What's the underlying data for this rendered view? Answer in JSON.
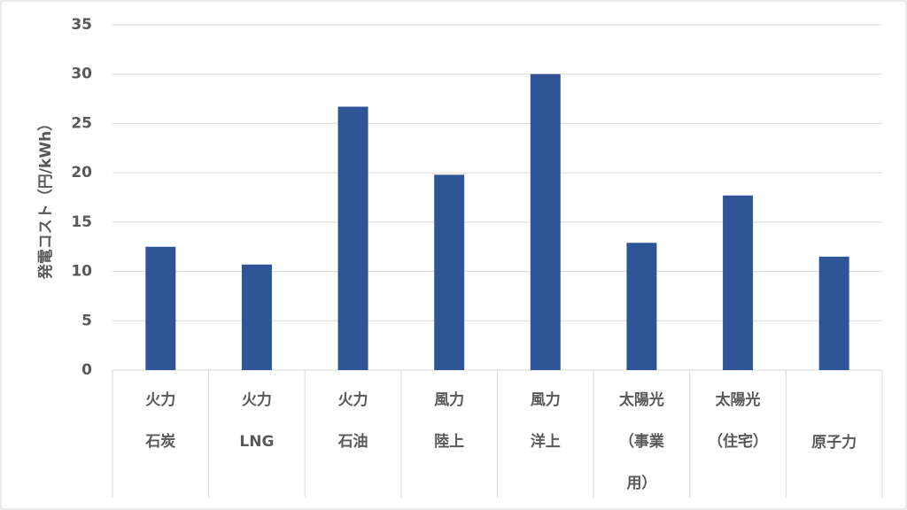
{
  "chart_data": {
    "type": "bar",
    "y_label": "発電コスト（円/kWh）",
    "categories": [
      [
        "火力",
        "石炭"
      ],
      [
        "火力",
        "LNG"
      ],
      [
        "火力",
        "石油"
      ],
      [
        "風力",
        "陸上"
      ],
      [
        "風力",
        "洋上"
      ],
      [
        "太陽光",
        "（事業",
        "用）"
      ],
      [
        "太陽光",
        "（住宅）"
      ],
      [
        "原子力"
      ]
    ],
    "values": [
      12.5,
      10.7,
      26.7,
      19.8,
      30.0,
      12.9,
      17.7,
      11.5
    ],
    "color": "#2f5597",
    "ylim": [
      0,
      35
    ],
    "yticks": [
      0,
      5,
      10,
      15,
      20,
      25,
      30,
      35
    ],
    "grid": true
  }
}
